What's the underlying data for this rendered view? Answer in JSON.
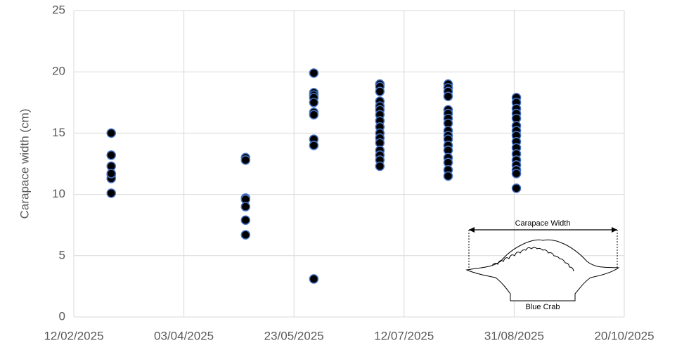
{
  "chart_data": {
    "type": "scatter",
    "y_label": "Carapace width (cm)",
    "annotations": [
      "Carapace Width",
      "Blue Crab"
    ],
    "xlim": [
      "12/02/2025",
      "20/10/2025"
    ],
    "xticks": [
      "12/02/2025",
      "03/04/2025",
      "23/05/2025",
      "12/07/2025",
      "31/08/2025",
      "20/10/2025"
    ],
    "ylim": [
      0,
      25
    ],
    "yticks": [
      0,
      5,
      10,
      15,
      20,
      25
    ],
    "grid": true,
    "series": [
      {
        "color": "#000000",
        "edge_color": "#4472c4",
        "x": [
          "01/03/2025",
          "01/03/2025",
          "01/03/2025",
          "01/03/2025",
          "01/03/2025",
          "01/03/2025",
          "01/03/2025",
          "01/05/2025",
          "01/05/2025",
          "01/05/2025",
          "01/05/2025",
          "01/05/2025",
          "01/05/2025",
          "01/05/2025",
          "01/06/2025",
          "01/06/2025",
          "01/06/2025",
          "01/06/2025",
          "01/06/2025",
          "01/06/2025",
          "01/06/2025",
          "01/06/2025",
          "01/06/2025",
          "01/06/2025",
          "01/07/2025",
          "01/07/2025",
          "01/07/2025",
          "01/07/2025",
          "01/07/2025",
          "01/07/2025",
          "01/07/2025",
          "01/07/2025",
          "01/07/2025",
          "01/07/2025",
          "01/07/2025",
          "01/07/2025",
          "01/07/2025",
          "01/07/2025",
          "01/07/2025",
          "01/07/2025",
          "01/08/2025",
          "01/08/2025",
          "01/08/2025",
          "01/08/2025",
          "01/08/2025",
          "01/08/2025",
          "01/08/2025",
          "01/08/2025",
          "01/08/2025",
          "01/08/2025",
          "01/08/2025",
          "01/08/2025",
          "01/08/2025",
          "01/08/2025",
          "01/08/2025",
          "01/08/2025",
          "01/08/2025",
          "01/09/2025",
          "01/09/2025",
          "01/09/2025",
          "01/09/2025",
          "01/09/2025",
          "01/09/2025",
          "01/09/2025",
          "01/09/2025",
          "01/09/2025",
          "01/09/2025",
          "01/09/2025",
          "01/09/2025",
          "01/09/2025",
          "01/09/2025",
          "01/09/2025",
          "01/09/2025"
        ],
        "values": [
          15,
          13.2,
          12.3,
          11.6,
          11.3,
          11.7,
          10.1,
          13.0,
          12.8,
          9.7,
          9.6,
          9.0,
          7.9,
          6.7,
          19.9,
          18.3,
          18.1,
          17.9,
          17.5,
          16.7,
          16.5,
          14.5,
          14.0,
          3.1,
          19.0,
          18.8,
          18.4,
          17.6,
          17.2,
          16.9,
          16.5,
          16.0,
          15.5,
          15.0,
          14.6,
          14.2,
          13.6,
          13.2,
          12.8,
          12.3,
          19.0,
          18.7,
          18.4,
          18.0,
          16.9,
          16.6,
          16.2,
          15.8,
          15.2,
          14.8,
          14.5,
          14.0,
          13.6,
          13.0,
          12.6,
          12.0,
          11.5,
          17.9,
          17.5,
          17.0,
          16.6,
          16.2,
          15.6,
          15.2,
          14.8,
          14.3,
          13.8,
          13.3,
          12.8,
          12.4,
          12.0,
          11.7,
          10.5
        ]
      }
    ]
  }
}
